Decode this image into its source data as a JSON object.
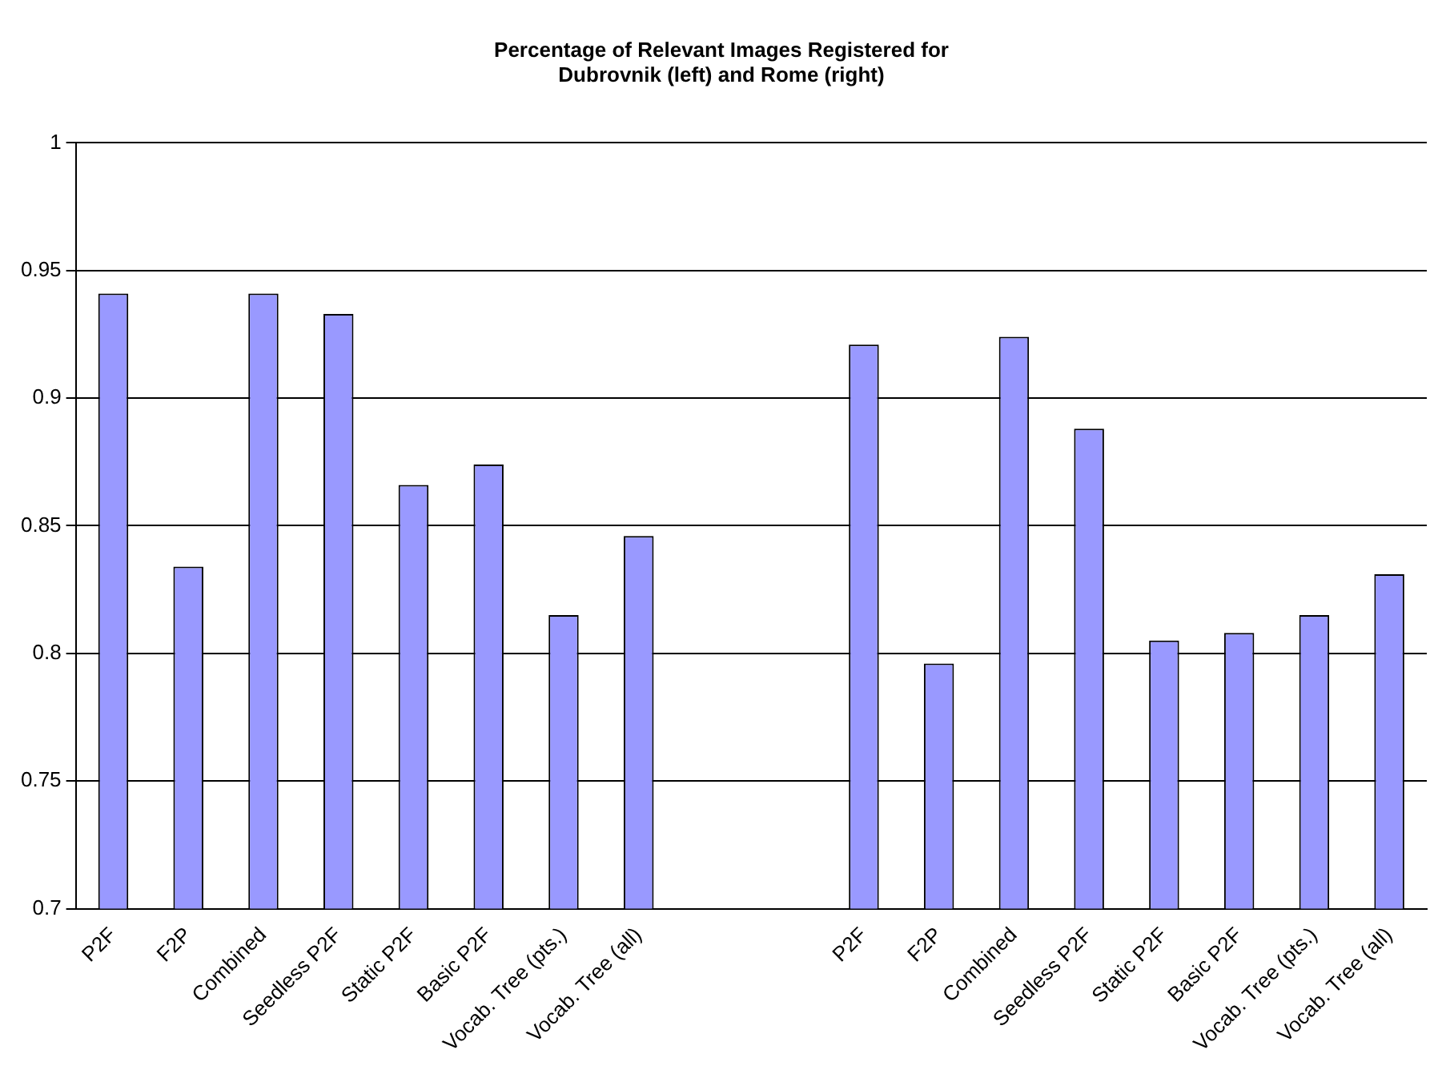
{
  "chart_data": {
    "type": "bar",
    "title": "Percentage of Relevant Images Registered for\nDubrovnik (left) and Rome (right)",
    "categories": [
      "P2F",
      "F2P",
      "Combined",
      "Seedless P2F",
      "Static P2F",
      "Basic P2F",
      "Vocab. Tree (pts.)",
      "Vocab. Tree (all)",
      null,
      null,
      "P2F",
      "F2P",
      "Combined",
      "Seedless P2F",
      "Static P2F",
      "Basic P2F",
      "Vocab. Tree (pts.)",
      "Vocab. Tree (all)"
    ],
    "series": [
      {
        "color": "#9999ff",
        "values": [
          0.941,
          0.834,
          0.941,
          0.933,
          0.866,
          0.874,
          0.815,
          0.846,
          null,
          null,
          0.921,
          0.796,
          0.924,
          0.888,
          0.805,
          0.808,
          0.815,
          0.831
        ]
      }
    ],
    "ylim": [
      0.7,
      1
    ],
    "yticks": [
      0.7,
      0.75,
      0.8,
      0.85,
      0.9,
      0.95,
      1
    ],
    "grid": "y",
    "legend": false
  }
}
